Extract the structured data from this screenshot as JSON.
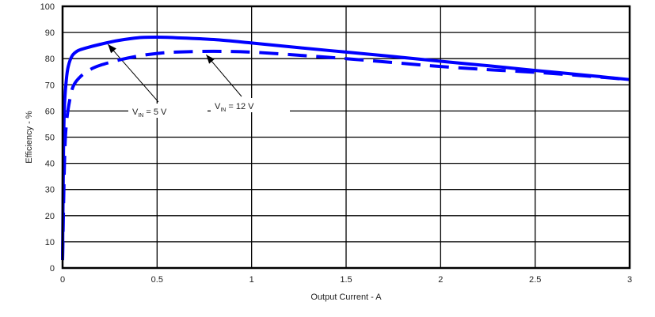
{
  "chart_data": {
    "type": "line",
    "title": "",
    "xlabel": "Output Current - A",
    "ylabel": "Efficiency - %",
    "xlim": [
      0,
      3
    ],
    "ylim": [
      0,
      100
    ],
    "x_ticks": [
      "0",
      "0.5",
      "1",
      "1.5",
      "2",
      "2.5",
      "3"
    ],
    "y_ticks": [
      "0",
      "10",
      "20",
      "30",
      "40",
      "50",
      "60",
      "70",
      "80",
      "90",
      "100"
    ],
    "grid": true,
    "legend_position": "none (inline annotations)",
    "series": [
      {
        "name": "VIN = 5 V",
        "style": "solid",
        "color": "#0000ff",
        "x": [
          0.0,
          0.005,
          0.01,
          0.02,
          0.03,
          0.05,
          0.08,
          0.12,
          0.2,
          0.3,
          0.4,
          0.5,
          0.6,
          0.8,
          1.0,
          1.25,
          1.5,
          1.75,
          2.0,
          2.25,
          2.5,
          2.75,
          3.0
        ],
        "values": [
          3,
          45,
          62,
          72,
          77,
          81,
          83,
          84,
          85.5,
          87,
          88,
          88.2,
          88,
          87.3,
          86,
          84.2,
          82.5,
          80.8,
          79,
          77.3,
          75.5,
          73.8,
          72
        ]
      },
      {
        "name": "VIN = 12 V",
        "style": "dashed",
        "color": "#0000ff",
        "x": [
          0.0,
          0.01,
          0.02,
          0.04,
          0.06,
          0.1,
          0.15,
          0.2,
          0.3,
          0.4,
          0.5,
          0.6,
          0.8,
          1.0,
          1.25,
          1.5,
          1.75,
          2.0,
          2.25,
          2.5,
          2.75,
          3.0
        ],
        "values": [
          3,
          40,
          55,
          65,
          70,
          73.5,
          76,
          77.5,
          79.5,
          81,
          82,
          82.5,
          82.8,
          82.5,
          81.3,
          80,
          78.5,
          77,
          75.8,
          74.8,
          73.5,
          72
        ]
      }
    ],
    "annotations": [
      {
        "text_main": "V",
        "text_sub": "IN",
        "text_rest": " = 5 V",
        "points_to": {
          "x": 0.24,
          "y": 87
        }
      },
      {
        "text_main": "V",
        "text_sub": "IN",
        "text_rest": " = 12 V",
        "points_to": {
          "x": 0.76,
          "y": 83
        }
      }
    ]
  },
  "colors": {
    "series": "#0000ff",
    "grid": "#000000",
    "background": "#ffffff"
  }
}
